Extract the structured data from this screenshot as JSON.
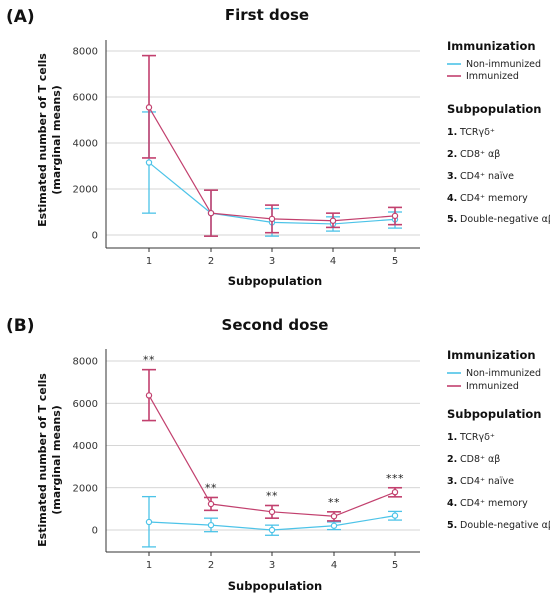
{
  "chart_data": [
    {
      "type": "line",
      "panel_label": "(A)",
      "title": "First dose",
      "xlabel": "Subpopulation",
      "ylabel": [
        "Estimated number of T cells",
        "(marginal means)"
      ],
      "categories": [
        "1",
        "2",
        "3",
        "4",
        "5"
      ],
      "yticks": [
        "0",
        "2000",
        "4000",
        "6000",
        "8000"
      ],
      "ylim": [
        -500,
        8400
      ],
      "grid": true,
      "series": [
        {
          "name": "Non-immunized",
          "color": "#4cc3e8",
          "values": [
            3150,
            950,
            550,
            480,
            680
          ],
          "err_low": [
            950,
            -50,
            -50,
            170,
            300
          ],
          "err_high": [
            5350,
            1950,
            1150,
            790,
            1000
          ]
        },
        {
          "name": "Immunized",
          "color": "#c2406e",
          "values": [
            5550,
            950,
            700,
            620,
            830
          ],
          "err_low": [
            3350,
            -50,
            100,
            330,
            450
          ],
          "err_high": [
            7800,
            1950,
            1300,
            950,
            1200
          ]
        }
      ],
      "annotations": [],
      "legend": {
        "immunization_title": "Immunization",
        "subpopulation_title": "Subpopulation",
        "subpopulations": [
          {
            "num": "1.",
            "label": "TCRγδ⁺"
          },
          {
            "num": "2.",
            "label": "CD8⁺ αβ"
          },
          {
            "num": "3.",
            "label": "CD4⁺ naïve"
          },
          {
            "num": "4.",
            "label": "CD4⁺ memory"
          },
          {
            "num": "5.",
            "label": "Double-negative αβ"
          }
        ]
      }
    },
    {
      "type": "line",
      "panel_label": "(B)",
      "title": "Second dose",
      "xlabel": "Subpopulation",
      "ylabel": [
        "Estimated number of T cells",
        "(marginal means)"
      ],
      "categories": [
        "1",
        "2",
        "3",
        "4",
        "5"
      ],
      "yticks": [
        "0",
        "2000",
        "4000",
        "6000",
        "8000"
      ],
      "ylim": [
        -900,
        8400
      ],
      "grid": true,
      "series": [
        {
          "name": "Non-immunized",
          "color": "#4cc3e8",
          "values": [
            380,
            230,
            0,
            200,
            680
          ],
          "err_low": [
            -800,
            -80,
            -250,
            20,
            470
          ],
          "err_high": [
            1580,
            560,
            230,
            380,
            880
          ]
        },
        {
          "name": "Immunized",
          "color": "#c2406e",
          "values": [
            6370,
            1230,
            860,
            650,
            1790
          ],
          "err_low": [
            5180,
            930,
            560,
            430,
            1570
          ],
          "err_high": [
            7590,
            1540,
            1160,
            860,
            2000
          ]
        }
      ],
      "annotations": [
        {
          "category": "1",
          "text": "**"
        },
        {
          "category": "2",
          "text": "**"
        },
        {
          "category": "3",
          "text": "**"
        },
        {
          "category": "4",
          "text": "**"
        },
        {
          "category": "5",
          "text": "***"
        }
      ],
      "legend": {
        "immunization_title": "Immunization",
        "subpopulation_title": "Subpopulation",
        "subpopulations": [
          {
            "num": "1.",
            "label": "TCRγδ⁺"
          },
          {
            "num": "2.",
            "label": "CD8⁺ αβ"
          },
          {
            "num": "3.",
            "label": "CD4⁺ naïve"
          },
          {
            "num": "4.",
            "label": "CD4⁺ memory"
          },
          {
            "num": "5.",
            "label": "Double-negative αβ"
          }
        ]
      }
    }
  ]
}
